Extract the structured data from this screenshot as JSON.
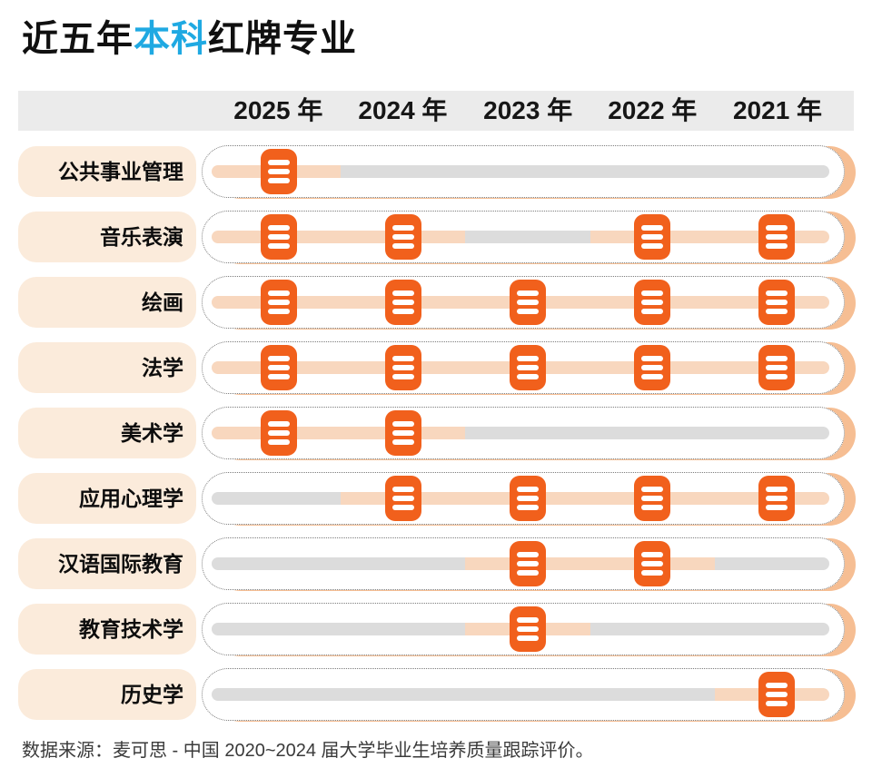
{
  "title": {
    "prefix": "近五年",
    "highlight": "本科",
    "suffix": "红牌专业"
  },
  "header": {
    "years": [
      "2025 年",
      "2024 年",
      "2023 年",
      "2022 年",
      "2021 年"
    ]
  },
  "source": "数据来源：麦可思 - 中国 2020~2024 届大学毕业生培养质量跟踪评价。",
  "colors": {
    "highlight_blue": "#1FA9E2",
    "badge_orange": "#F1601C",
    "track_peach": "#F8D7BE",
    "track_gray": "#DCDCDC",
    "label_bg": "#FBEBDB",
    "header_bg": "#EBEBEB",
    "pill_shadow": "#F6BE93"
  },
  "icons": {
    "badge": "red-card-icon"
  },
  "chart_data": {
    "type": "table",
    "title": "近五年本科红牌专业",
    "categories": [
      "2025 年",
      "2024 年",
      "2023 年",
      "2022 年",
      "2021 年"
    ],
    "series": [
      {
        "name": "公共事业管理",
        "values": [
          1,
          0,
          0,
          0,
          0
        ]
      },
      {
        "name": "音乐表演",
        "values": [
          1,
          1,
          0,
          1,
          1
        ]
      },
      {
        "name": "绘画",
        "values": [
          1,
          1,
          1,
          1,
          1
        ]
      },
      {
        "name": "法学",
        "values": [
          1,
          1,
          1,
          1,
          1
        ]
      },
      {
        "name": "美术学",
        "values": [
          1,
          1,
          0,
          0,
          0
        ]
      },
      {
        "name": "应用心理学",
        "values": [
          0,
          1,
          1,
          1,
          1
        ]
      },
      {
        "name": "汉语国际教育",
        "values": [
          0,
          0,
          1,
          1,
          0
        ]
      },
      {
        "name": "教育技术学",
        "values": [
          0,
          0,
          1,
          0,
          0
        ]
      },
      {
        "name": "历史学",
        "values": [
          0,
          0,
          0,
          0,
          1
        ]
      }
    ],
    "value_meaning": "1 = red-card badge shown for that year, 0 = none",
    "legend_position": "none",
    "source": "数据来源：麦可思 - 中国 2020~2024 届大学毕业生培养质量跟踪评价。"
  }
}
